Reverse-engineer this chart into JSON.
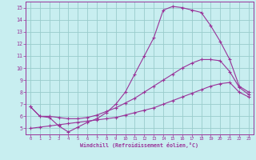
{
  "background_color": "#c8eef0",
  "grid_color": "#99cccc",
  "line_color": "#993399",
  "xlim": [
    -0.5,
    23.5
  ],
  "ylim": [
    4.5,
    15.5
  ],
  "xticks": [
    0,
    1,
    2,
    3,
    4,
    5,
    6,
    7,
    8,
    9,
    10,
    11,
    12,
    13,
    14,
    15,
    16,
    17,
    18,
    19,
    20,
    21,
    22,
    23
  ],
  "yticks": [
    5,
    6,
    7,
    8,
    9,
    10,
    11,
    12,
    13,
    14,
    15
  ],
  "xlabel": "Windchill (Refroidissement éolien,°C)",
  "curve1_x": [
    0,
    1,
    2,
    3,
    4,
    5,
    6,
    7,
    8,
    9,
    10,
    11,
    12,
    13,
    14,
    15,
    16,
    17,
    18,
    19,
    20,
    21,
    22,
    23
  ],
  "curve1_y": [
    6.8,
    6.0,
    5.9,
    5.2,
    4.7,
    5.1,
    5.5,
    5.8,
    6.3,
    7.0,
    8.0,
    9.5,
    11.0,
    12.5,
    14.8,
    15.1,
    15.0,
    14.8,
    14.6,
    13.5,
    12.2,
    10.7,
    8.5,
    8.0
  ],
  "curve2_x": [
    0,
    1,
    2,
    3,
    4,
    5,
    6,
    7,
    8,
    9,
    10,
    11,
    12,
    13,
    14,
    15,
    16,
    17,
    18,
    19,
    20,
    21,
    22,
    23
  ],
  "curve2_y": [
    6.8,
    6.0,
    6.0,
    5.9,
    5.8,
    5.8,
    5.9,
    6.1,
    6.4,
    6.7,
    7.1,
    7.5,
    8.0,
    8.5,
    9.0,
    9.5,
    10.0,
    10.4,
    10.7,
    10.7,
    10.6,
    9.7,
    8.4,
    7.8
  ],
  "curve3_x": [
    0,
    1,
    2,
    3,
    4,
    5,
    6,
    7,
    8,
    9,
    10,
    11,
    12,
    13,
    14,
    15,
    16,
    17,
    18,
    19,
    20,
    21,
    22,
    23
  ],
  "curve3_y": [
    5.0,
    5.1,
    5.2,
    5.3,
    5.4,
    5.5,
    5.6,
    5.7,
    5.8,
    5.9,
    6.1,
    6.3,
    6.5,
    6.7,
    7.0,
    7.3,
    7.6,
    7.9,
    8.2,
    8.5,
    8.7,
    8.8,
    8.0,
    7.6
  ]
}
